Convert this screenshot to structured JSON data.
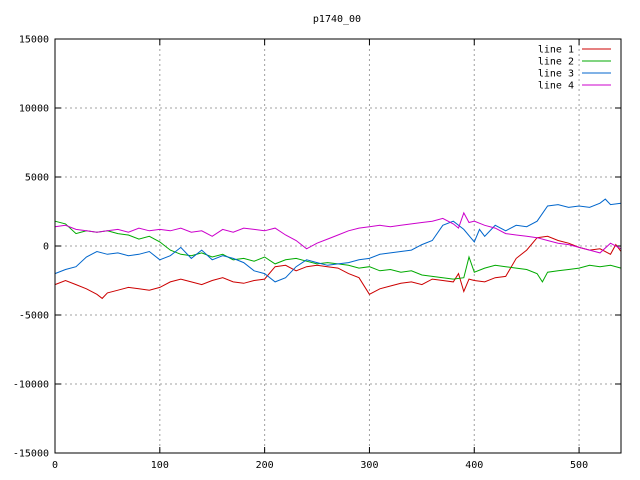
{
  "chart_data": {
    "type": "line",
    "title": "p1740_00",
    "xlabel": "",
    "ylabel": "",
    "xlim": [
      0,
      540
    ],
    "ylim": [
      -15000,
      15000
    ],
    "xticks": [
      0,
      100,
      200,
      300,
      400,
      500
    ],
    "yticks": [
      -15000,
      -10000,
      -5000,
      0,
      5000,
      10000,
      15000
    ],
    "grid": true,
    "legend": "top-right",
    "series": [
      {
        "name": "line 1",
        "color": "#cc0000",
        "x": [
          0,
          10,
          20,
          30,
          40,
          45,
          50,
          60,
          70,
          80,
          90,
          100,
          110,
          120,
          130,
          140,
          150,
          160,
          170,
          180,
          190,
          200,
          210,
          220,
          230,
          240,
          250,
          260,
          270,
          280,
          290,
          300,
          310,
          320,
          330,
          340,
          350,
          360,
          370,
          380,
          385,
          390,
          395,
          400,
          410,
          420,
          430,
          440,
          450,
          460,
          470,
          480,
          490,
          500,
          510,
          520,
          530,
          535,
          540
        ],
        "y": [
          -2800,
          -2500,
          -2800,
          -3100,
          -3500,
          -3800,
          -3400,
          -3200,
          -3000,
          -3100,
          -3200,
          -3000,
          -2600,
          -2400,
          -2600,
          -2800,
          -2500,
          -2300,
          -2600,
          -2700,
          -2500,
          -2400,
          -1500,
          -1400,
          -1800,
          -1500,
          -1400,
          -1500,
          -1600,
          -2000,
          -2300,
          -3500,
          -3100,
          -2900,
          -2700,
          -2600,
          -2800,
          -2400,
          -2500,
          -2600,
          -2000,
          -3300,
          -2400,
          -2500,
          -2600,
          -2300,
          -2200,
          -900,
          -300,
          600,
          700,
          400,
          200,
          -100,
          -300,
          -200,
          -600,
          100,
          -400
        ]
      },
      {
        "name": "line 2",
        "color": "#00aa00",
        "x": [
          0,
          10,
          20,
          30,
          40,
          50,
          60,
          70,
          80,
          90,
          100,
          110,
          120,
          130,
          140,
          150,
          160,
          170,
          180,
          190,
          200,
          210,
          220,
          230,
          240,
          250,
          260,
          270,
          280,
          290,
          300,
          310,
          320,
          330,
          340,
          350,
          360,
          370,
          380,
          390,
          395,
          400,
          410,
          420,
          430,
          440,
          450,
          460,
          465,
          470,
          480,
          490,
          500,
          510,
          520,
          530,
          540
        ],
        "y": [
          1800,
          1600,
          900,
          1100,
          1000,
          1100,
          900,
          800,
          500,
          700,
          300,
          -300,
          -600,
          -700,
          -500,
          -800,
          -600,
          -1000,
          -900,
          -1100,
          -800,
          -1300,
          -1000,
          -900,
          -1100,
          -1300,
          -1200,
          -1300,
          -1400,
          -1600,
          -1500,
          -1800,
          -1700,
          -1900,
          -1800,
          -2100,
          -2200,
          -2300,
          -2400,
          -2300,
          -800,
          -1900,
          -1600,
          -1400,
          -1500,
          -1600,
          -1700,
          -2000,
          -2600,
          -1900,
          -1800,
          -1700,
          -1600,
          -1400,
          -1500,
          -1400,
          -1600
        ]
      },
      {
        "name": "line 3",
        "color": "#0066cc",
        "x": [
          0,
          10,
          20,
          30,
          40,
          50,
          60,
          70,
          80,
          90,
          100,
          110,
          120,
          130,
          140,
          150,
          160,
          170,
          180,
          190,
          200,
          210,
          220,
          230,
          240,
          250,
          260,
          270,
          280,
          290,
          300,
          310,
          320,
          330,
          340,
          350,
          360,
          370,
          380,
          390,
          400,
          405,
          410,
          420,
          430,
          440,
          450,
          460,
          470,
          480,
          490,
          500,
          510,
          520,
          525,
          530,
          540
        ],
        "y": [
          -2000,
          -1700,
          -1500,
          -800,
          -400,
          -600,
          -500,
          -700,
          -600,
          -400,
          -1000,
          -700,
          -100,
          -900,
          -300,
          -1000,
          -700,
          -900,
          -1200,
          -1800,
          -2000,
          -2600,
          -2300,
          -1500,
          -1000,
          -1200,
          -1400,
          -1300,
          -1200,
          -1000,
          -900,
          -600,
          -500,
          -400,
          -300,
          100,
          400,
          1500,
          1800,
          1200,
          300,
          1200,
          700,
          1500,
          1100,
          1500,
          1400,
          1800,
          2900,
          3000,
          2800,
          2900,
          2800,
          3100,
          3400,
          3000,
          3100
        ]
      },
      {
        "name": "line 4",
        "color": "#cc00cc",
        "x": [
          0,
          10,
          20,
          30,
          40,
          50,
          60,
          70,
          80,
          90,
          100,
          110,
          120,
          130,
          140,
          150,
          160,
          170,
          180,
          190,
          200,
          210,
          220,
          230,
          240,
          250,
          260,
          270,
          280,
          290,
          300,
          310,
          320,
          330,
          340,
          350,
          360,
          370,
          380,
          385,
          390,
          395,
          400,
          410,
          420,
          430,
          440,
          450,
          460,
          470,
          480,
          490,
          500,
          510,
          520,
          530,
          540
        ],
        "y": [
          1400,
          1500,
          1200,
          1100,
          1000,
          1100,
          1200,
          1000,
          1300,
          1100,
          1200,
          1100,
          1300,
          1000,
          1100,
          700,
          1200,
          1000,
          1300,
          1200,
          1100,
          1300,
          800,
          400,
          -200,
          200,
          500,
          800,
          1100,
          1300,
          1400,
          1500,
          1400,
          1500,
          1600,
          1700,
          1800,
          2000,
          1600,
          1300,
          2400,
          1700,
          1800,
          1500,
          1300,
          900,
          800,
          700,
          600,
          400,
          200,
          100,
          -100,
          -300,
          -500,
          200,
          -200
        ]
      }
    ]
  }
}
